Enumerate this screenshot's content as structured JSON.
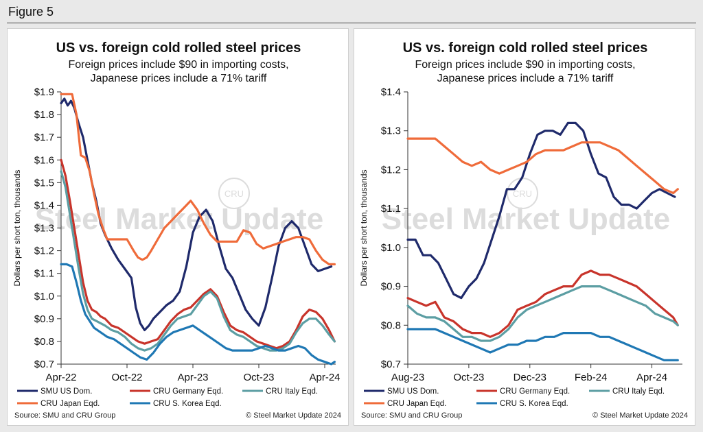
{
  "figure": {
    "label": "Figure 5"
  },
  "colors": {
    "smu": "#1f2a6b",
    "germany": "#c8342b",
    "italy": "#5c9ea3",
    "japan": "#ef6b3a",
    "korea": "#1f78b4",
    "watermark": "#dcdcdc"
  },
  "watermark": {
    "text": "Steel Market Update",
    "badge": "CRU"
  },
  "chart_data": [
    {
      "type": "line",
      "title": "US vs. foreign cold rolled steel prices",
      "subtitle_lines": [
        "Foreign prices include $90 in importing costs,",
        "Japanese prices include a 71% tariff"
      ],
      "ylabel": "Dollars per short ton, thousands",
      "ylim": [
        0.7,
        1.9
      ],
      "yticks": [
        0.7,
        0.8,
        0.9,
        1.0,
        1.1,
        1.2,
        1.3,
        1.4,
        1.5,
        1.6,
        1.7,
        1.8,
        1.9
      ],
      "ytick_labels": [
        "$0.7",
        "$0.8",
        "$0.9",
        "$1.0",
        "$1.1",
        "$1.2",
        "$1.3",
        "$1.4",
        "$1.5",
        "$1.6",
        "$1.7",
        "$1.8",
        "$1.9"
      ],
      "xlim": [
        0,
        25
      ],
      "xticks": [
        0,
        6,
        12,
        18,
        24
      ],
      "xtick_labels": [
        "Apr-22",
        "Oct-22",
        "Apr-23",
        "Oct-23",
        "Apr-24"
      ],
      "x_unit": "months since Apr-22",
      "series": [
        {
          "name": "SMU US Dom.",
          "key": "smu",
          "x": [
            0,
            0.3,
            0.6,
            0.9,
            1.2,
            1.6,
            2.0,
            2.4,
            2.8,
            3.2,
            3.6,
            4.0,
            4.6,
            5.2,
            5.8,
            6.4,
            6.8,
            7.2,
            7.6,
            8.0,
            8.4,
            9.0,
            9.6,
            10.2,
            10.8,
            11.4,
            12.0,
            12.6,
            13.2,
            13.8,
            14.4,
            15.0,
            15.6,
            16.2,
            16.8,
            17.4,
            18.0,
            18.6,
            19.2,
            19.8,
            20.4,
            21.0,
            21.6,
            22.2,
            22.8,
            23.4,
            24.0,
            24.6
          ],
          "values": [
            1.85,
            1.87,
            1.84,
            1.86,
            1.83,
            1.76,
            1.7,
            1.6,
            1.5,
            1.42,
            1.32,
            1.27,
            1.21,
            1.16,
            1.12,
            1.08,
            0.95,
            0.88,
            0.85,
            0.87,
            0.9,
            0.93,
            0.96,
            0.98,
            1.02,
            1.13,
            1.28,
            1.35,
            1.38,
            1.33,
            1.22,
            1.12,
            1.08,
            1.01,
            0.94,
            0.9,
            0.87,
            0.95,
            1.08,
            1.22,
            1.3,
            1.33,
            1.3,
            1.22,
            1.14,
            1.11,
            1.12,
            1.13
          ]
        },
        {
          "name": "CRU Germany Eqd.",
          "key": "germany",
          "x": [
            0,
            0.4,
            0.8,
            1.2,
            1.6,
            2.0,
            2.4,
            2.8,
            3.2,
            3.6,
            4.0,
            4.6,
            5.2,
            5.8,
            6.4,
            7.0,
            7.6,
            8.2,
            8.8,
            9.4,
            10.0,
            10.6,
            11.2,
            11.8,
            12.4,
            13.0,
            13.6,
            14.2,
            14.8,
            15.4,
            16.0,
            16.6,
            17.2,
            17.8,
            18.4,
            19.0,
            19.6,
            20.2,
            20.8,
            21.4,
            22.0,
            22.6,
            23.2,
            23.8,
            24.4,
            24.9
          ],
          "values": [
            1.6,
            1.53,
            1.42,
            1.3,
            1.18,
            1.06,
            0.98,
            0.94,
            0.93,
            0.91,
            0.9,
            0.87,
            0.86,
            0.84,
            0.82,
            0.8,
            0.79,
            0.8,
            0.81,
            0.85,
            0.89,
            0.92,
            0.94,
            0.95,
            0.98,
            1.01,
            1.03,
            1.0,
            0.93,
            0.87,
            0.85,
            0.84,
            0.82,
            0.8,
            0.79,
            0.78,
            0.77,
            0.78,
            0.8,
            0.85,
            0.91,
            0.94,
            0.93,
            0.9,
            0.85,
            0.8
          ]
        },
        {
          "name": "CRU Italy Eqd.",
          "key": "italy",
          "x": [
            0,
            0.4,
            0.8,
            1.2,
            1.6,
            2.0,
            2.4,
            2.8,
            3.2,
            3.6,
            4.0,
            4.6,
            5.2,
            5.8,
            6.4,
            7.0,
            7.6,
            8.2,
            8.8,
            9.4,
            10.0,
            10.6,
            11.2,
            11.8,
            12.4,
            13.0,
            13.6,
            14.2,
            14.8,
            15.4,
            16.0,
            16.6,
            17.2,
            17.8,
            18.4,
            19.0,
            19.6,
            20.2,
            20.8,
            21.4,
            22.0,
            22.6,
            23.2,
            23.8,
            24.4,
            24.9
          ],
          "values": [
            1.55,
            1.48,
            1.36,
            1.24,
            1.12,
            1.01,
            0.94,
            0.9,
            0.89,
            0.88,
            0.87,
            0.85,
            0.84,
            0.82,
            0.79,
            0.77,
            0.76,
            0.77,
            0.79,
            0.83,
            0.87,
            0.9,
            0.91,
            0.92,
            0.96,
            1.0,
            1.02,
            0.99,
            0.91,
            0.85,
            0.83,
            0.82,
            0.8,
            0.78,
            0.77,
            0.76,
            0.76,
            0.77,
            0.79,
            0.84,
            0.88,
            0.9,
            0.9,
            0.87,
            0.83,
            0.8
          ]
        },
        {
          "name": "CRU Japan Eqd.",
          "key": "japan",
          "x": [
            0,
            0.5,
            1.0,
            1.4,
            1.8,
            2.2,
            2.6,
            3.0,
            3.4,
            3.8,
            4.2,
            4.8,
            5.4,
            6.0,
            6.6,
            7.0,
            7.4,
            7.8,
            8.2,
            8.8,
            9.4,
            10.0,
            10.6,
            11.2,
            11.8,
            12.4,
            13.0,
            13.6,
            14.2,
            14.8,
            15.4,
            16.0,
            16.6,
            17.2,
            17.8,
            18.4,
            19.0,
            19.6,
            20.2,
            20.8,
            21.4,
            22.0,
            22.6,
            23.2,
            23.8,
            24.4,
            24.9
          ],
          "values": [
            1.89,
            1.89,
            1.89,
            1.8,
            1.62,
            1.61,
            1.55,
            1.45,
            1.36,
            1.3,
            1.25,
            1.25,
            1.25,
            1.25,
            1.2,
            1.17,
            1.16,
            1.17,
            1.2,
            1.25,
            1.3,
            1.33,
            1.36,
            1.39,
            1.42,
            1.38,
            1.32,
            1.27,
            1.24,
            1.24,
            1.24,
            1.24,
            1.29,
            1.28,
            1.23,
            1.21,
            1.22,
            1.23,
            1.24,
            1.25,
            1.26,
            1.26,
            1.25,
            1.2,
            1.16,
            1.14,
            1.14
          ]
        },
        {
          "name": "CRU S. Korea Eqd.",
          "key": "korea",
          "x": [
            0,
            0.5,
            1.0,
            1.4,
            1.8,
            2.2,
            2.6,
            3.0,
            3.6,
            4.2,
            4.8,
            5.4,
            6.0,
            6.6,
            7.2,
            7.8,
            8.4,
            9.0,
            9.6,
            10.2,
            10.8,
            11.4,
            12.0,
            12.6,
            13.2,
            13.8,
            14.4,
            15.0,
            15.6,
            16.2,
            16.8,
            17.4,
            18.0,
            18.6,
            19.2,
            19.8,
            20.4,
            21.0,
            21.6,
            22.2,
            22.8,
            23.4,
            24.0,
            24.6,
            24.9
          ],
          "values": [
            1.14,
            1.14,
            1.13,
            1.06,
            0.98,
            0.92,
            0.89,
            0.86,
            0.84,
            0.82,
            0.81,
            0.79,
            0.77,
            0.75,
            0.73,
            0.72,
            0.75,
            0.79,
            0.82,
            0.84,
            0.85,
            0.86,
            0.87,
            0.85,
            0.83,
            0.81,
            0.79,
            0.77,
            0.76,
            0.76,
            0.76,
            0.76,
            0.77,
            0.78,
            0.77,
            0.76,
            0.76,
            0.77,
            0.78,
            0.77,
            0.74,
            0.72,
            0.71,
            0.7,
            0.71
          ]
        }
      ],
      "legend": {
        "placement": "bottom"
      },
      "source": "Source: SMU and CRU Group",
      "copyright": "© Steel Market Update 2024"
    },
    {
      "type": "line",
      "title": "US vs. foreign cold rolled steel prices",
      "subtitle_lines": [
        "Foreign prices include $90 in importing costs,",
        "Japanese prices include a 71% tariff"
      ],
      "ylabel": "Dollars per short ton, thousands",
      "ylim": [
        0.7,
        1.4
      ],
      "yticks": [
        0.7,
        0.8,
        0.9,
        1.0,
        1.1,
        1.2,
        1.3,
        1.4
      ],
      "ytick_labels": [
        "$0.7",
        "$0.8",
        "$0.9",
        "$1.0",
        "$1.1",
        "$1.2",
        "$1.3",
        "$1.4"
      ],
      "xlim": [
        0,
        9
      ],
      "xticks": [
        0,
        2,
        4,
        6,
        8
      ],
      "xtick_labels": [
        "Aug-23",
        "Oct-23",
        "Dec-23",
        "Feb-24",
        "Apr-24"
      ],
      "x_unit": "months since Aug-23",
      "series": [
        {
          "name": "SMU US Dom.",
          "key": "smu",
          "x": [
            0,
            0.25,
            0.5,
            0.75,
            1.0,
            1.25,
            1.5,
            1.75,
            2.0,
            2.25,
            2.5,
            2.75,
            3.0,
            3.25,
            3.5,
            3.75,
            4.0,
            4.25,
            4.5,
            4.75,
            5.0,
            5.25,
            5.5,
            5.75,
            6.0,
            6.25,
            6.5,
            6.75,
            7.0,
            7.25,
            7.5,
            7.75,
            8.0,
            8.25,
            8.5,
            8.75
          ],
          "values": [
            1.02,
            1.02,
            0.98,
            0.98,
            0.96,
            0.92,
            0.88,
            0.87,
            0.9,
            0.92,
            0.96,
            1.02,
            1.08,
            1.15,
            1.15,
            1.18,
            1.24,
            1.29,
            1.3,
            1.3,
            1.29,
            1.32,
            1.32,
            1.3,
            1.24,
            1.19,
            1.18,
            1.13,
            1.11,
            1.11,
            1.1,
            1.12,
            1.14,
            1.15,
            1.14,
            1.13
          ]
        },
        {
          "name": "CRU Germany Eqd.",
          "key": "germany",
          "x": [
            0,
            0.3,
            0.6,
            0.9,
            1.2,
            1.5,
            1.8,
            2.1,
            2.4,
            2.7,
            3.0,
            3.3,
            3.6,
            3.9,
            4.2,
            4.5,
            4.8,
            5.1,
            5.4,
            5.7,
            6.0,
            6.3,
            6.6,
            6.9,
            7.2,
            7.5,
            7.8,
            8.1,
            8.4,
            8.7,
            8.85
          ],
          "values": [
            0.87,
            0.86,
            0.85,
            0.86,
            0.82,
            0.81,
            0.79,
            0.78,
            0.78,
            0.77,
            0.78,
            0.8,
            0.84,
            0.85,
            0.86,
            0.88,
            0.89,
            0.9,
            0.9,
            0.93,
            0.94,
            0.93,
            0.93,
            0.92,
            0.91,
            0.9,
            0.88,
            0.86,
            0.84,
            0.82,
            0.8
          ]
        },
        {
          "name": "CRU Italy Eqd.",
          "key": "italy",
          "x": [
            0,
            0.3,
            0.6,
            0.9,
            1.2,
            1.5,
            1.8,
            2.1,
            2.4,
            2.7,
            3.0,
            3.3,
            3.6,
            3.9,
            4.2,
            4.5,
            4.8,
            5.1,
            5.4,
            5.7,
            6.0,
            6.3,
            6.6,
            6.9,
            7.2,
            7.5,
            7.8,
            8.1,
            8.4,
            8.7,
            8.85
          ],
          "values": [
            0.85,
            0.83,
            0.82,
            0.82,
            0.81,
            0.79,
            0.77,
            0.77,
            0.76,
            0.76,
            0.77,
            0.79,
            0.82,
            0.84,
            0.85,
            0.86,
            0.87,
            0.88,
            0.89,
            0.9,
            0.9,
            0.9,
            0.89,
            0.88,
            0.87,
            0.86,
            0.85,
            0.83,
            0.82,
            0.81,
            0.8
          ]
        },
        {
          "name": "CRU Japan Eqd.",
          "key": "japan",
          "x": [
            0,
            0.3,
            0.6,
            0.9,
            1.2,
            1.5,
            1.8,
            2.1,
            2.4,
            2.7,
            3.0,
            3.3,
            3.6,
            3.9,
            4.2,
            4.5,
            4.8,
            5.1,
            5.4,
            5.7,
            6.0,
            6.3,
            6.6,
            6.9,
            7.2,
            7.5,
            7.8,
            8.1,
            8.4,
            8.7,
            8.85
          ],
          "values": [
            1.28,
            1.28,
            1.28,
            1.28,
            1.26,
            1.24,
            1.22,
            1.21,
            1.22,
            1.2,
            1.19,
            1.2,
            1.21,
            1.22,
            1.24,
            1.25,
            1.25,
            1.25,
            1.26,
            1.27,
            1.27,
            1.27,
            1.26,
            1.25,
            1.23,
            1.21,
            1.19,
            1.17,
            1.15,
            1.14,
            1.15
          ]
        },
        {
          "name": "CRU S. Korea Eqd.",
          "key": "korea",
          "x": [
            0,
            0.3,
            0.6,
            0.9,
            1.2,
            1.5,
            1.8,
            2.1,
            2.4,
            2.7,
            3.0,
            3.3,
            3.6,
            3.9,
            4.2,
            4.5,
            4.8,
            5.1,
            5.4,
            5.7,
            6.0,
            6.3,
            6.6,
            6.9,
            7.2,
            7.5,
            7.8,
            8.1,
            8.4,
            8.7,
            8.85
          ],
          "values": [
            0.79,
            0.79,
            0.79,
            0.79,
            0.78,
            0.77,
            0.76,
            0.75,
            0.74,
            0.73,
            0.74,
            0.75,
            0.75,
            0.76,
            0.76,
            0.77,
            0.77,
            0.78,
            0.78,
            0.78,
            0.78,
            0.77,
            0.77,
            0.76,
            0.75,
            0.74,
            0.73,
            0.72,
            0.71,
            0.71,
            0.71
          ]
        }
      ],
      "legend": {
        "placement": "bottom"
      },
      "source": "Source: SMU and CRU Group",
      "copyright": "© Steel Market Update 2024"
    }
  ]
}
